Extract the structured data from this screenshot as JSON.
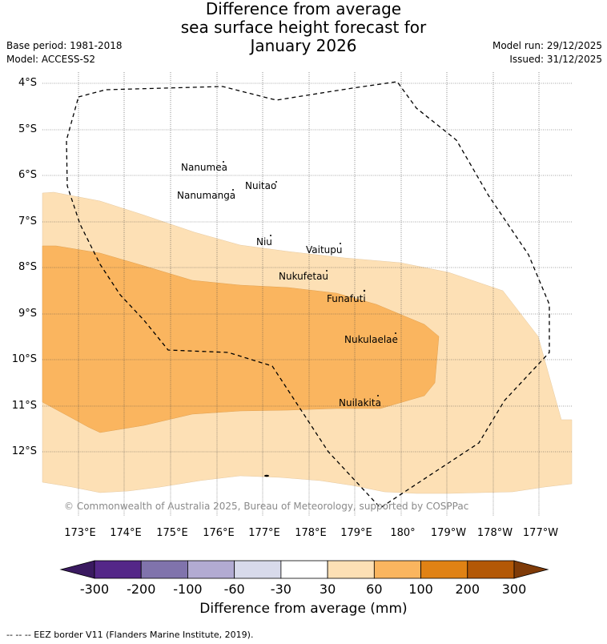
{
  "title": {
    "line1": "Difference from average",
    "line2": "sea surface height forecast for",
    "line3": "January 2026"
  },
  "meta": {
    "base_period": "Base period: 1981-2018",
    "model": "Model: ACCESS-S2",
    "model_run": "Model run: 29/12/2025",
    "issued": "Issued: 31/12/2025"
  },
  "map": {
    "lat_labels": [
      "4°S",
      "5°S",
      "6°S",
      "7°S",
      "8°S",
      "9°S",
      "10°S",
      "11°S",
      "12°S"
    ],
    "lon_labels": [
      "173°E",
      "174°E",
      "175°E",
      "176°E",
      "177°E",
      "178°E",
      "179°E",
      "180°",
      "179°W",
      "178°W",
      "177°W"
    ],
    "islands": [
      "Nanumea",
      "Nuitao",
      "Nanumanga",
      "Niu",
      "Vaitupu",
      "Nukufetau",
      "Funafuti",
      "Nukulaelae",
      "Nuilakita"
    ],
    "fill_bands": [
      {
        "range": "30 to 60 mm",
        "color": "#fde0b5"
      },
      {
        "range": "60 to 100 mm",
        "color": "#fab55f"
      }
    ],
    "copyright": "© Commonwealth of Australia 2025, Bureau of Meteorology, supported by COSPPac"
  },
  "colorbar": {
    "labels": [
      "-300",
      "-200",
      "-100",
      "-60",
      "-30",
      "30",
      "60",
      "100",
      "200",
      "300"
    ],
    "colors": [
      "#542788",
      "#8073ac",
      "#b2abd2",
      "#d8daeb",
      "#ffffff",
      "#fde0b5",
      "#fab55f",
      "#e08214",
      "#b35806"
    ],
    "under_color": "#3a1a60",
    "over_color": "#7f3b08",
    "title": "Difference from average (mm)"
  },
  "legend_note": "--  --  -- EEZ border V11 (Flanders Marine Institute, 2019)."
}
